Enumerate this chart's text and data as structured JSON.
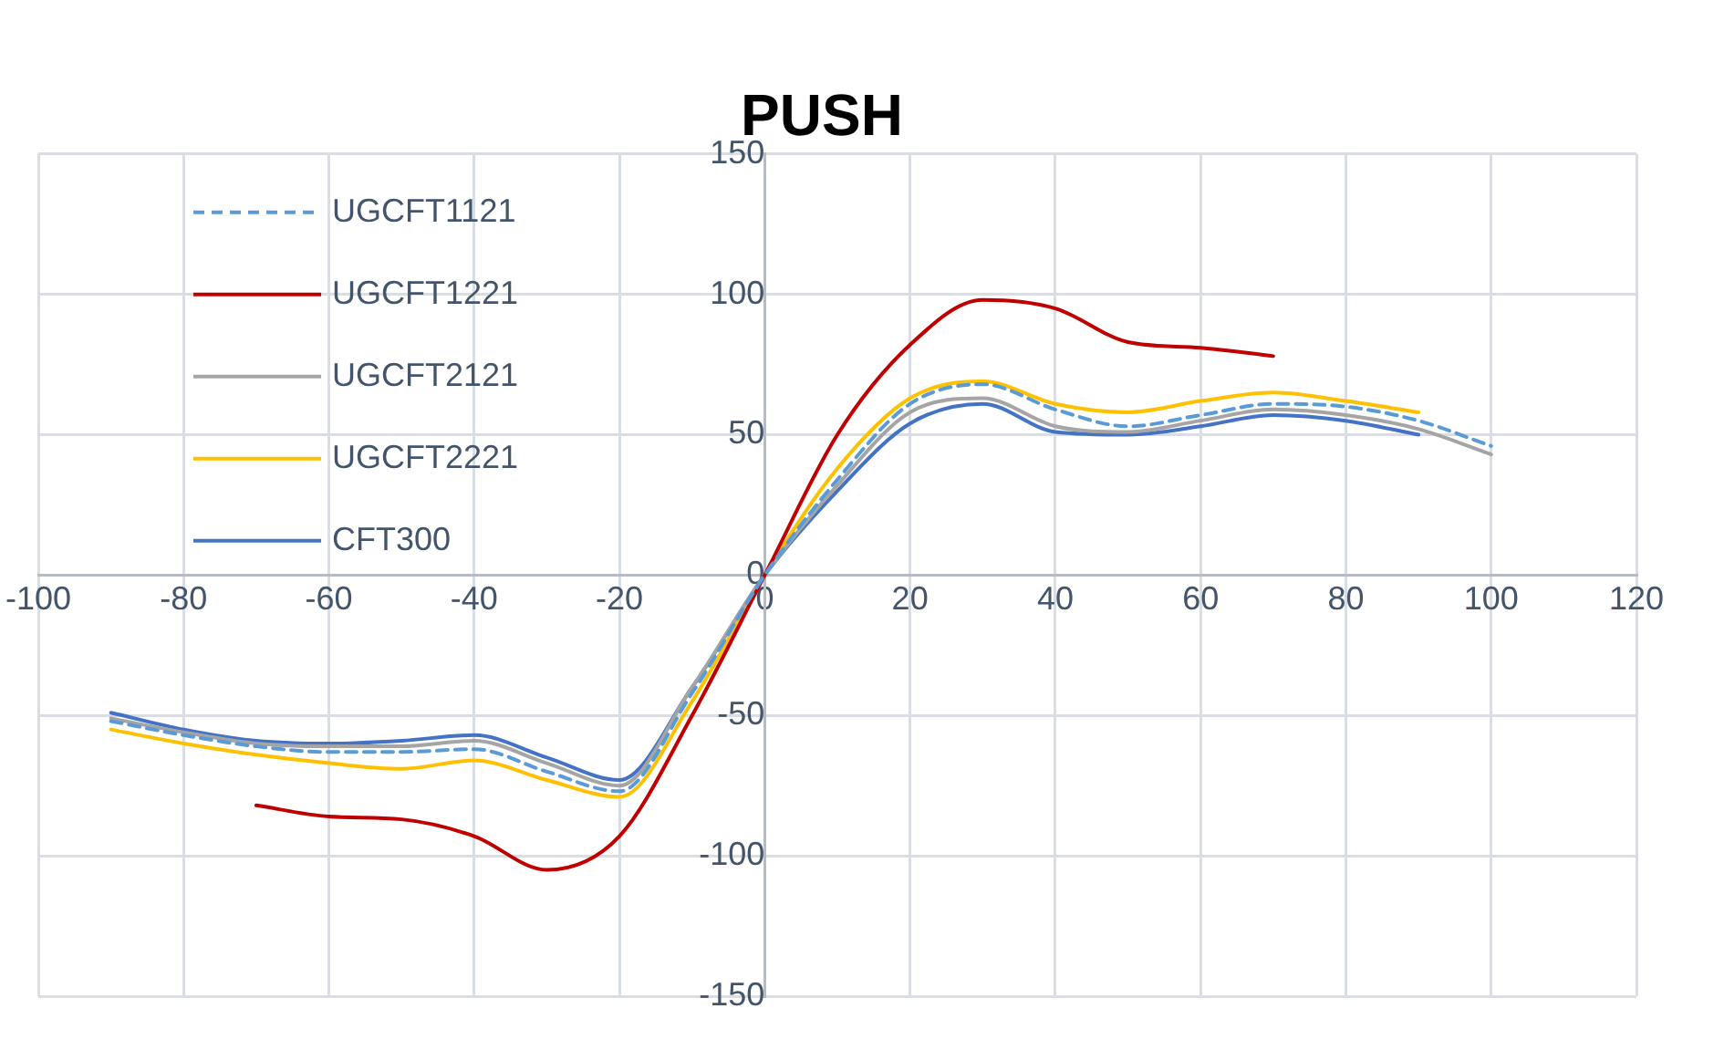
{
  "chart_data": {
    "type": "line",
    "title": "PUSH",
    "x": [
      -90,
      -80,
      -70,
      -60,
      -50,
      -40,
      -30,
      -20,
      -10,
      0,
      10,
      20,
      30,
      40,
      50,
      60,
      70,
      80,
      90,
      100
    ],
    "series": [
      {
        "name": "UGCFT1121",
        "color": "#5b9bd5",
        "line_style": "dashed",
        "values": [
          -52,
          -57,
          -61,
          -63,
          -63,
          -62,
          -70,
          -77,
          -42,
          0,
          34,
          61,
          68,
          59,
          53,
          57,
          61,
          60,
          55,
          46
        ]
      },
      {
        "name": "UGCFT1221",
        "color": "#c00000",
        "values": [
          null,
          null,
          -82,
          -86,
          -87,
          -93,
          -105,
          -93,
          -50,
          0,
          50,
          82,
          98,
          95,
          83,
          81,
          78,
          null,
          null,
          null
        ]
      },
      {
        "name": "UGCFT2121",
        "color": "#a5a5a5",
        "values": [
          -51,
          -56,
          -60,
          -61,
          -61,
          -59,
          -67,
          -75,
          -40,
          0,
          32,
          58,
          63,
          53,
          51,
          55,
          59,
          57,
          52,
          43
        ]
      },
      {
        "name": "UGCFT2221",
        "color": "#ffc000",
        "values": [
          -55,
          -60,
          -64,
          -67,
          -69,
          -66,
          -73,
          -79,
          -45,
          0,
          38,
          63,
          69,
          61,
          58,
          62,
          65,
          62,
          58,
          null
        ]
      },
      {
        "name": "CFT300",
        "color": "#4472c4",
        "values": [
          -49,
          -55,
          -59,
          -60,
          -59,
          -57,
          -65,
          -73,
          -40,
          0,
          30,
          54,
          61,
          51,
          50,
          53,
          57,
          55,
          50,
          null
        ]
      }
    ],
    "xlim": [
      -100,
      120
    ],
    "xticks": [
      -100,
      -80,
      -60,
      -40,
      -20,
      0,
      20,
      40,
      60,
      80,
      100,
      120
    ],
    "ylim": [
      -150,
      150
    ],
    "yticks": [
      -150,
      -100,
      -50,
      0,
      50,
      100,
      150
    ],
    "grid": true,
    "legend": "top left",
    "marker": "none",
    "line_style": "solid"
  }
}
